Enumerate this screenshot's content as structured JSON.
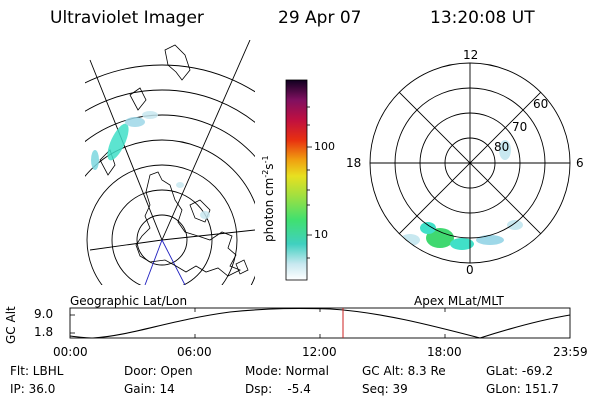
{
  "header": {
    "instrument": "Ultraviolet Imager",
    "date": "29 Apr 07",
    "time": "13:20:08 UT"
  },
  "geo_panel": {
    "label": "Geographic Lat/Lon"
  },
  "polar_panel": {
    "label": "Apex MLat/MLT",
    "mlt_labels": [
      "12",
      "18",
      "6",
      "0"
    ],
    "lat_labels": [
      "60",
      "70",
      "80"
    ]
  },
  "colorbar": {
    "unit": "photon cm",
    "unit_exp1": "-2",
    "unit_mid": "s",
    "unit_exp2": "-1",
    "ticks": [
      "100",
      "10"
    ]
  },
  "altitude_plot": {
    "ylabel": "GC Alt",
    "yticks": [
      "9.0",
      "1.8"
    ],
    "xticks": [
      "00:00",
      "06:00",
      "12:00",
      "18:00",
      "23:59"
    ],
    "current_time_marker": "13:20"
  },
  "footer": {
    "flt": "Flt: LBHL",
    "door": "Door: Open",
    "mode": "Mode: Normal",
    "gc_alt": "GC Alt: 8.3 Re",
    "glat": "GLat: -69.2",
    "ip": "IP: 36.0",
    "gain": "Gain: 14",
    "dsp": "Dsp:    -5.4",
    "seq": "Seq: 39",
    "glon": "GLon: 151.7"
  },
  "colors": {
    "aurora_cyan": "#40e0c8",
    "aurora_green": "#40d870",
    "marker_red": "#cc2020"
  }
}
